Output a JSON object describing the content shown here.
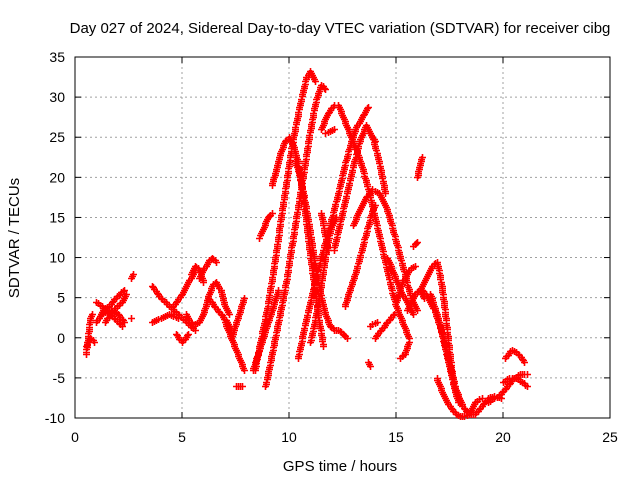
{
  "chart_data": {
    "type": "scatter",
    "title": "Day 027 of 2024, Sidereal Day-to-day VTEC variation (SDTVAR) for receiver cibg",
    "xlabel": "GPS time / hours",
    "ylabel": "SDTVAR / TECUs",
    "xlim": [
      0,
      25
    ],
    "ylim": [
      -10,
      35
    ],
    "xticks": [
      "0",
      "5",
      "10",
      "15",
      "20",
      "25"
    ],
    "yticks": [
      "-10",
      "-5",
      "0",
      "5",
      "10",
      "15",
      "20",
      "25",
      "30",
      "35"
    ],
    "grid": true,
    "marker": "plus",
    "color": "#ff0000",
    "segments": [
      {
        "x": [
          0.5,
          0.6,
          0.7,
          0.8
        ],
        "y": [
          -2,
          0,
          2.5,
          3
        ]
      },
      {
        "x": [
          0.5,
          0.7,
          0.9
        ],
        "y": [
          -1,
          0,
          -0.5
        ]
      },
      {
        "x": [
          1.0,
          1.3,
          1.6,
          1.9,
          2.1,
          2.3
        ],
        "y": [
          2,
          3.5,
          4,
          5,
          5.5,
          6
        ]
      },
      {
        "x": [
          1.0,
          1.4,
          1.8,
          2.2
        ],
        "y": [
          4.5,
          3.5,
          2.5,
          1.5
        ]
      },
      {
        "x": [
          1.4,
          1.8,
          2.2,
          2.4
        ],
        "y": [
          2,
          3.5,
          4.5,
          5.5
        ]
      },
      {
        "x": [
          1.2,
          1.6,
          2.0,
          2.3
        ],
        "y": [
          3,
          3.5,
          3,
          2
        ]
      },
      {
        "x": [
          2.6
        ],
        "y": [
          2.5
        ]
      },
      {
        "x": [
          2.6,
          2.7
        ],
        "y": [
          7.5,
          8
        ]
      },
      {
        "x": [
          3.6,
          4.0,
          4.4,
          4.8,
          5.2,
          5.6
        ],
        "y": [
          6.5,
          5,
          4,
          3,
          2,
          1
        ]
      },
      {
        "x": [
          3.6,
          4.0,
          4.4,
          4.8
        ],
        "y": [
          2,
          2.5,
          3,
          2.5
        ]
      },
      {
        "x": [
          4.6,
          5.0,
          5.3,
          5.6
        ],
        "y": [
          4,
          5.5,
          7,
          8.5
        ]
      },
      {
        "x": [
          4.7,
          5.0,
          5.3
        ],
        "y": [
          0.5,
          -0.5,
          0.5
        ]
      },
      {
        "x": [
          5.2,
          5.5,
          5.8,
          6.0
        ],
        "y": [
          3,
          1.5,
          2,
          3
        ]
      },
      {
        "x": [
          5.4,
          5.6,
          5.8,
          6.0
        ],
        "y": [
          8,
          9,
          8.5,
          7
        ]
      },
      {
        "x": [
          5.8,
          6.0,
          6.2,
          6.4,
          6.6
        ],
        "y": [
          7.5,
          8.5,
          9.5,
          10,
          9.5
        ]
      },
      {
        "x": [
          6.0,
          6.2,
          6.4,
          6.6,
          6.8,
          7.0,
          7.2
        ],
        "y": [
          3,
          5,
          6.5,
          7,
          6,
          4,
          3
        ]
      },
      {
        "x": [
          6.2,
          6.5,
          6.8,
          7.1,
          7.3
        ],
        "y": [
          5,
          4,
          3,
          2,
          1
        ]
      },
      {
        "x": [
          7.0,
          7.3,
          7.6,
          7.9
        ],
        "y": [
          2,
          0,
          -2,
          -4
        ]
      },
      {
        "x": [
          7.3,
          7.6,
          7.9
        ],
        "y": [
          0,
          2.5,
          5
        ]
      },
      {
        "x": [
          7.5,
          7.8
        ],
        "y": [
          -6,
          -6
        ]
      },
      {
        "x": [
          8.3,
          8.6,
          8.9,
          9.2,
          9.5
        ],
        "y": [
          -4,
          -1.5,
          1,
          3.5,
          6
        ]
      },
      {
        "x": [
          8.9,
          9.2,
          9.5,
          9.8,
          10.1,
          10.4,
          10.7,
          10.9,
          11.1,
          11.3,
          11.5,
          11.7
        ],
        "y": [
          -6,
          -2,
          2,
          6,
          11,
          16,
          21,
          24.5,
          27.5,
          30,
          31.5,
          31
        ]
      },
      {
        "x": [
          8.4,
          8.7,
          9.0,
          9.3,
          9.6,
          9.9,
          10.2,
          10.5,
          10.8,
          11.0,
          11.2
        ],
        "y": [
          -4,
          0,
          4,
          9,
          14.5,
          20,
          25,
          29,
          32.5,
          33.2,
          32
        ]
      },
      {
        "x": [
          8.6,
          8.8,
          9.0,
          9.2
        ],
        "y": [
          12.5,
          13.5,
          15,
          15.5
        ]
      },
      {
        "x": [
          9.2,
          9.4,
          9.6,
          9.8,
          10.0,
          10.2,
          10.4,
          10.6,
          10.8,
          11.0,
          11.2,
          11.4,
          11.6
        ],
        "y": [
          19,
          21,
          23,
          24.5,
          25,
          24,
          22,
          18.5,
          14.5,
          10,
          6,
          2,
          -1
        ]
      },
      {
        "x": [
          10.3,
          10.5,
          10.7,
          10.9,
          11.1,
          11.3,
          11.5,
          11.7,
          11.9,
          12.1,
          12.3,
          12.5,
          12.7
        ],
        "y": [
          22,
          20,
          17.5,
          14.5,
          11,
          8,
          5,
          3,
          1.5,
          1,
          1,
          0.5,
          0
        ]
      },
      {
        "x": [
          10.4,
          10.7,
          11.0,
          11.3,
          11.6,
          11.9,
          12.2,
          12.5,
          12.8,
          13.1,
          13.4,
          13.7
        ],
        "y": [
          -2.5,
          1,
          4.5,
          8,
          11,
          14,
          17,
          20.5,
          23.5,
          26,
          27.5,
          28.8
        ]
      },
      {
        "x": [
          11.0,
          11.2,
          11.4,
          11.6,
          11.8,
          12.0,
          12.2
        ],
        "y": [
          -0.5,
          2,
          5,
          8.5,
          12,
          14,
          15
        ]
      },
      {
        "x": [
          11.5,
          11.6,
          11.8
        ],
        "y": [
          15.5,
          14,
          11
        ]
      },
      {
        "x": [
          11.5,
          11.8,
          12.1
        ],
        "y": [
          26,
          28,
          29
        ]
      },
      {
        "x": [
          11.7,
          11.9,
          12.1
        ],
        "y": [
          25.5,
          25.8,
          26
        ]
      },
      {
        "x": [
          12.1,
          12.4,
          12.7,
          13.0,
          13.3,
          13.6,
          13.9,
          14.2,
          14.5
        ],
        "y": [
          11,
          14.5,
          18,
          21.5,
          24.5,
          26.5,
          25,
          22,
          18
        ]
      },
      {
        "x": [
          12.3,
          12.6,
          12.9,
          13.2,
          13.5,
          13.8,
          14.1,
          14.4,
          14.7,
          15.0,
          15.3,
          15.6
        ],
        "y": [
          29,
          27,
          25,
          23,
          20.5,
          17.5,
          14,
          10.5,
          7,
          4,
          2,
          0
        ]
      },
      {
        "x": [
          12.6,
          12.9,
          13.2,
          13.5,
          13.8,
          14.0
        ],
        "y": [
          4,
          6.5,
          9,
          12,
          15,
          16.5
        ]
      },
      {
        "x": [
          13.0,
          13.3,
          13.6,
          13.9,
          14.2,
          14.5,
          14.8,
          15.1,
          15.4,
          15.7,
          16.0
        ],
        "y": [
          14,
          16,
          17.5,
          18.5,
          18,
          16.5,
          14,
          11,
          8,
          5,
          3.5
        ]
      },
      {
        "x": [
          13.7,
          13.8
        ],
        "y": [
          -3,
          -3.5
        ]
      },
      {
        "x": [
          13.8,
          14.1
        ],
        "y": [
          1.5,
          2
        ]
      },
      {
        "x": [
          13.9,
          14.0
        ],
        "y": [
          25,
          24.5
        ]
      },
      {
        "x": [
          14.0,
          14.3,
          14.6,
          14.9
        ],
        "y": [
          0,
          1,
          2,
          3
        ]
      },
      {
        "x": [
          14.6,
          14.9,
          15.2,
          15.5,
          15.8
        ],
        "y": [
          10,
          8,
          6,
          4.5,
          3
        ]
      },
      {
        "x": [
          15.0,
          15.3,
          15.6,
          15.9
        ],
        "y": [
          4.5,
          7,
          8.5,
          9
        ]
      },
      {
        "x": [
          15.2,
          15.4,
          15.6
        ],
        "y": [
          -2.5,
          -2,
          -0.5
        ]
      },
      {
        "x": [
          15.5,
          15.7,
          15.9,
          16.1,
          16.3
        ],
        "y": [
          3.5,
          4.5,
          5.5,
          6,
          5
        ]
      },
      {
        "x": [
          15.8,
          16.0
        ],
        "y": [
          11.5,
          12
        ]
      },
      {
        "x": [
          16.0,
          16.1,
          16.2
        ],
        "y": [
          20,
          21.5,
          22.5
        ]
      },
      {
        "x": [
          16.1,
          16.3,
          16.5,
          16.7,
          16.9,
          17.1,
          17.3,
          17.5,
          17.7,
          17.9
        ],
        "y": [
          6,
          7,
          8,
          9,
          9.5,
          7,
          3,
          -2,
          -6,
          -8
        ]
      },
      {
        "x": [
          16.2,
          16.5,
          16.8,
          17.1,
          17.4,
          17.7,
          18.0
        ],
        "y": [
          6,
          5,
          3.5,
          1,
          -2.5,
          -6,
          -8
        ]
      },
      {
        "x": [
          16.6,
          16.9,
          17.2,
          17.5,
          17.8,
          18.1,
          18.4,
          18.7,
          19.0,
          19.3,
          19.6,
          19.9
        ],
        "y": [
          5.5,
          3,
          0,
          -3.5,
          -6.5,
          -8.5,
          -9.5,
          -9.5,
          -8.5,
          -7.5,
          -7.3,
          -7.5
        ]
      },
      {
        "x": [
          16.9,
          17.2,
          17.5,
          17.8,
          18.1,
          18.4,
          18.7,
          19.0
        ],
        "y": [
          -5,
          -7,
          -8.5,
          -9.5,
          -9.8,
          -9.5,
          -8,
          -7.5
        ]
      },
      {
        "x": [
          19.3,
          19.6,
          19.9,
          20.2,
          20.5,
          20.8,
          21.1
        ],
        "y": [
          -8,
          -7.5,
          -7,
          -6,
          -5,
          -4.5,
          -4.5
        ]
      },
      {
        "x": [
          20.0,
          20.3,
          20.6,
          20.9,
          21.1
        ],
        "y": [
          -5.5,
          -5,
          -5,
          -5.5,
          -6
        ]
      },
      {
        "x": [
          20.1,
          20.4,
          20.7,
          21.0
        ],
        "y": [
          -2.5,
          -1.5,
          -2,
          -3
        ]
      }
    ]
  }
}
